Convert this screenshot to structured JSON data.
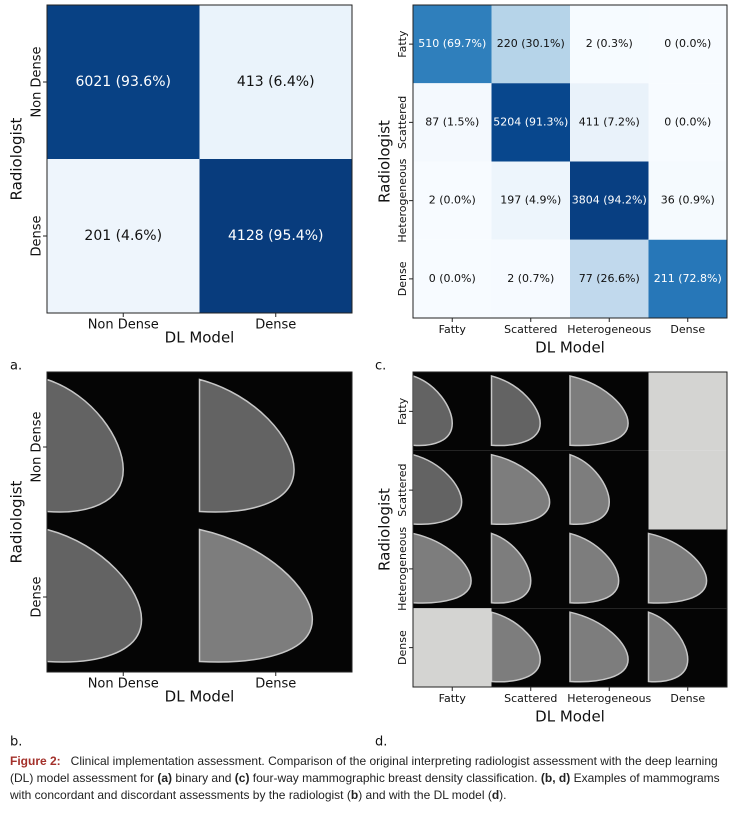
{
  "chart_data": [
    {
      "type": "heatmap",
      "panel": "a.",
      "ylabel": "Radiologist",
      "xlabel": "DL Model",
      "colormap": "Blues",
      "rows": [
        "Non Dense",
        "Dense"
      ],
      "categories": [
        "Non Dense",
        "Dense"
      ],
      "values": [
        [
          93.6,
          6.4
        ],
        [
          4.6,
          95.4
        ]
      ],
      "value_labels": [
        [
          "6021 (93.6%)",
          "413 (6.4%)"
        ],
        [
          "201 (4.6%)",
          "4128 (95.4%)"
        ]
      ]
    },
    {
      "type": "heatmap",
      "panel": "c.",
      "ylabel": "Radiologist",
      "xlabel": "DL Model",
      "colormap": "Blues",
      "rows": [
        "Fatty",
        "Scattered",
        "Heterogeneous",
        "Dense"
      ],
      "categories": [
        "Fatty",
        "Scattered",
        "Heterogeneous",
        "Dense"
      ],
      "values": [
        [
          69.7,
          30.1,
          0.3,
          0.0
        ],
        [
          1.5,
          91.3,
          7.2,
          0.0
        ],
        [
          0.0,
          4.9,
          94.2,
          0.9
        ],
        [
          0.0,
          0.7,
          26.6,
          72.8
        ]
      ],
      "value_labels": [
        [
          "510 (69.7%)",
          "220 (30.1%)",
          "2 (0.3%)",
          "0 (0.0%)"
        ],
        [
          "87 (1.5%)",
          "5204 (91.3%)",
          "411 (7.2%)",
          "0 (0.0%)"
        ],
        [
          "2 (0.0%)",
          "197 (4.9%)",
          "3804 (94.2%)",
          "36 (0.9%)"
        ],
        [
          "0 (0.0%)",
          "2 (0.7%)",
          "77 (26.6%)",
          "211 (72.8%)"
        ]
      ]
    },
    {
      "type": "image-grid",
      "panel": "b.",
      "ylabel": "Radiologist",
      "xlabel": "DL Model",
      "rows": [
        "Non Dense",
        "Dense"
      ],
      "categories": [
        "Non Dense",
        "Dense"
      ],
      "empty_cells": []
    },
    {
      "type": "image-grid",
      "panel": "d.",
      "ylabel": "Radiologist",
      "xlabel": "DL Model",
      "rows": [
        "Fatty",
        "Scattered",
        "Heterogeneous",
        "Dense"
      ],
      "categories": [
        "Fatty",
        "Scattered",
        "Heterogeneous",
        "Dense"
      ],
      "empty_cells": [
        [
          0,
          3
        ],
        [
          1,
          3
        ],
        [
          3,
          0
        ]
      ]
    }
  ],
  "caption": {
    "runs": [
      {
        "text": "Figure 2:",
        "bold": true,
        "color": "#a3302a"
      },
      {
        "text": "   Clinical implementation assessment. Comparison of the original interpreting radiologist assessment with the deep learning (DL) model assessment for ",
        "bold": false
      },
      {
        "text": "(a)",
        "bold": true
      },
      {
        "text": " binary and ",
        "bold": false
      },
      {
        "text": "(c)",
        "bold": true
      },
      {
        "text": " four-way mammographic breast density classification. ",
        "bold": false
      },
      {
        "text": "(b, d)",
        "bold": true
      },
      {
        "text": " Examples of mammograms with concordant and discordant assessments by the radiologist (",
        "bold": false
      },
      {
        "text": "b",
        "bold": true
      },
      {
        "text": ") and with the DL model (",
        "bold": false
      },
      {
        "text": "d",
        "bold": true
      },
      {
        "text": ").",
        "bold": false
      }
    ]
  }
}
